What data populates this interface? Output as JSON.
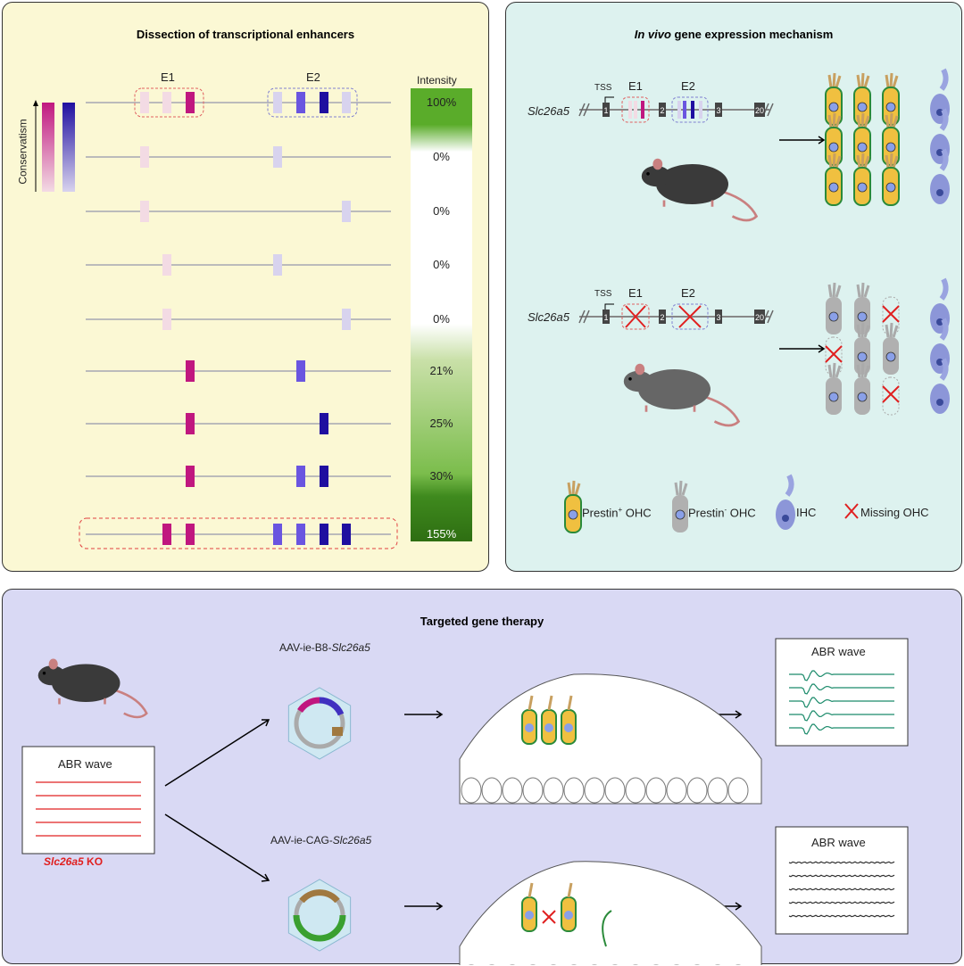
{
  "panel1": {
    "title": "Dissection of transcriptional enhancers",
    "e1": "E1",
    "e2": "E2",
    "intensity_label": "Intensity",
    "conservatism_label": "Conservatism",
    "rows": [
      {
        "e1": [
          "low",
          "low",
          "high"
        ],
        "e2": [
          "low",
          "mid",
          "high",
          "low"
        ],
        "intensity": "100%"
      },
      {
        "e1": [
          "low",
          null,
          null
        ],
        "e2": [
          "low",
          null,
          null,
          null
        ],
        "intensity": "0%"
      },
      {
        "e1": [
          "low",
          null,
          null
        ],
        "e2": [
          null,
          null,
          null,
          "low"
        ],
        "intensity": "0%"
      },
      {
        "e1": [
          null,
          "low",
          null
        ],
        "e2": [
          "low",
          null,
          null,
          null
        ],
        "intensity": "0%"
      },
      {
        "e1": [
          null,
          "low",
          null
        ],
        "e2": [
          null,
          null,
          null,
          "low"
        ],
        "intensity": "0%"
      },
      {
        "e1": [
          null,
          null,
          "high"
        ],
        "e2": [
          null,
          "mid",
          null,
          null
        ],
        "intensity": "21%"
      },
      {
        "e1": [
          null,
          null,
          "high"
        ],
        "e2": [
          null,
          null,
          "high",
          null
        ],
        "intensity": "25%"
      },
      {
        "e1": [
          null,
          null,
          "high"
        ],
        "e2": [
          null,
          "mid",
          "high",
          null
        ],
        "intensity": "30%"
      },
      {
        "e1": [
          null,
          "high",
          "high"
        ],
        "e2": [
          "mid",
          "mid",
          "high",
          "high"
        ],
        "intensity": "155%"
      }
    ]
  },
  "panel2": {
    "title_italic": "In vivo",
    "title_rest": " gene expression mechanism",
    "gene": "Slc26a5",
    "tss": "TSS",
    "e1": "E1",
    "e2": "E2",
    "exons": [
      "1",
      "2",
      "3",
      "20"
    ],
    "legend": [
      {
        "label": "Prestin",
        "sup": "+",
        "rest": " OHC"
      },
      {
        "label": "Prestin",
        "sup": "-",
        "rest": " OHC"
      },
      {
        "label": "IHC",
        "sup": "",
        "rest": ""
      },
      {
        "label": "Missing OHC",
        "sup": "",
        "rest": ""
      }
    ]
  },
  "panel3": {
    "title": "Targeted gene therapy",
    "abr": "ABR wave",
    "ko_gene": "Slc26a5",
    "ko_suffix": " KO",
    "vec1_prefix": "AAV-ie-B8-",
    "vec2_prefix": "AAV-ie-CAG-",
    "vec_gene": "Slc26a5"
  },
  "colors": {
    "e1_high": "#c0177f",
    "e1_low": "#f3dbe4",
    "e2_high": "#1f0fa0",
    "e2_mid": "#6a55e0",
    "e2_low": "#d8d3ee",
    "prestin_pos": "#f0c040",
    "prestin_neg": "#b0b0b0",
    "ihc": "#8c96d8",
    "missing": "#e02020",
    "abr_ko": "#e02020",
    "abr_good": "#1a8a6a"
  }
}
